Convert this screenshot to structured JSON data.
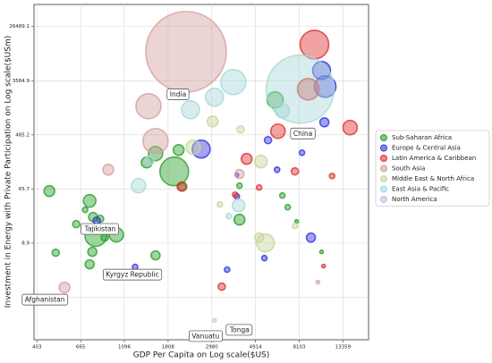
{
  "chart_data": {
    "type": "scatter",
    "x_label": "GDP Per Capita on Log scale($US)",
    "y_label": "Investment in Energy with Private Participation on Log scale($USm)",
    "xlog": true,
    "ylog": true,
    "grid": true,
    "legend": "right",
    "xlim": [
      390,
      17900
    ],
    "ylim": [
      0.25,
      60000
    ],
    "xticks": [
      403,
      665,
      1096,
      1808,
      2980,
      4914,
      8103,
      13359
    ],
    "yticks": [
      1.2,
      8.9,
      65.7,
      485.2,
      3584.9,
      26489.1
    ],
    "annotations": [
      {
        "text": "India",
        "x": 2220,
        "y": 10460
      },
      {
        "text": "China",
        "x": 8190,
        "y": 2620
      },
      {
        "text": "Tajikistan",
        "x": 790,
        "y": 11.7
      },
      {
        "text": "Kyrgyz Republic",
        "x": 1240,
        "y": 3.68
      },
      {
        "text": "Afghanistan",
        "x": 553,
        "y": 1.72
      },
      {
        "text": "Vanuatu",
        "x": 3075,
        "y": 0.51
      },
      {
        "text": "Tonga",
        "x": 3075,
        "y": 0.51
      }
    ],
    "series": [
      {
        "name": "Sub-Saharan Africa",
        "color": "#2ca02c",
        "x": [
          465,
          737,
          767,
          831,
          632,
          700,
          790,
          1000,
          876,
          760,
          737,
          500,
          1566,
          1940,
          1566,
          1415,
          2128,
          2040,
          4090,
          6150,
          4090,
          6680,
          7100,
          7860,
          10460
        ],
        "values": [
          60.8,
          42.3,
          23.3,
          21.8,
          17.9,
          30.4,
          11.7,
          12.1,
          10.9,
          6.44,
          4.06,
          6.23,
          5.65,
          125.6,
          243,
          175,
          71.7,
          277,
          21.1,
          1762,
          74.1,
          51.5,
          33.5,
          19.8,
          6.44
        ],
        "sizes": [
          36,
          49,
          25,
          16,
          16,
          9,
          144,
          64,
          16,
          25,
          25,
          16,
          25,
          256,
          64,
          36,
          25,
          36,
          36,
          81,
          9,
          9,
          9,
          4,
          4
        ]
      },
      {
        "name": "Europe & Central Asia",
        "color": "#3333dd",
        "x": [
          799,
          2640,
          10900,
          10460,
          10800,
          5670,
          8360,
          6290,
          3970,
          9260,
          5440,
          3550,
          1240,
          3970
        ],
        "values": [
          20.4,
          287,
          2890,
          5230,
          772,
          399,
          251,
          134,
          49.8,
          10.9,
          5.11,
          3.33,
          3.68,
          110
        ],
        "sizes": [
          16,
          100,
          144,
          100,
          25,
          16,
          9,
          9,
          9,
          25,
          9,
          9,
          9,
          4
        ]
      },
      {
        "name": "Latin America & Caribbean",
        "color": "#e03030",
        "x": [
          9640,
          8980,
          14500,
          6350,
          4440,
          7710,
          2110,
          3890,
          5120,
          11800,
          3340,
          10700
        ],
        "values": [
          13600,
          2620,
          634,
          555,
          200,
          126,
          71.7,
          53.2,
          69.3,
          106,
          1.78,
          3.8
        ],
        "sizes": [
          256,
          144,
          64,
          64,
          36,
          16,
          25,
          9,
          9,
          9,
          16,
          4
        ]
      },
      {
        "name": "South Asia",
        "color": "#d4a0a0",
        "x": [
          2220,
          1445,
          1566,
          912,
          553,
          4090,
          10030
        ],
        "values": [
          10460,
          1399,
          386,
          134,
          1.72,
          114,
          2.1
        ],
        "sizes": [
          2025,
          196,
          196,
          36,
          36,
          25,
          4
        ]
      },
      {
        "name": "Middle East & North Africa",
        "color": "#c5d6a0",
        "x": [
          3010,
          4140,
          5230,
          2410,
          5500,
          5120,
          7710,
          3270,
          3075
        ],
        "values": [
          798,
          593,
          181,
          306,
          8.96,
          10.9,
          16.8,
          37,
          0.51
        ],
        "sizes": [
          36,
          16,
          49,
          64,
          100,
          25,
          9,
          9,
          4
        ]
      },
      {
        "name": "East Asia & Pacific",
        "color": "#a8d8d8",
        "x": [
          8190,
          3810,
          3075,
          2335,
          1290,
          1460,
          4050,
          6680,
          3620
        ],
        "values": [
          2620,
          3410,
          1945,
          1226,
          74.1,
          187,
          35.8,
          1186,
          24.1
        ],
        "sizes": [
          1444,
          196,
          100,
          100,
          64,
          25,
          49,
          64,
          9
        ]
      },
      {
        "name": "North America",
        "color": "#cbb8e0",
        "x": [],
        "values": [],
        "sizes": []
      }
    ]
  }
}
